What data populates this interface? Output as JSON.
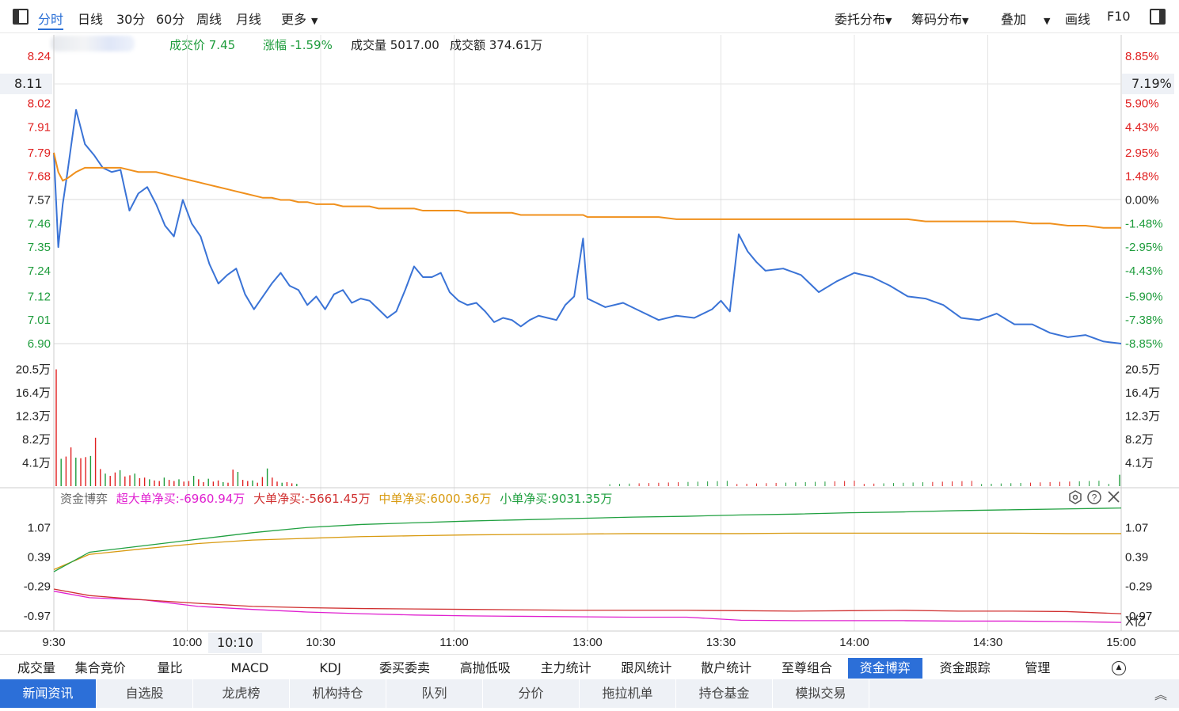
{
  "toolbar": {
    "left_items": [
      "分时",
      "日线",
      "30分",
      "60分",
      "周线",
      "月线",
      "更多"
    ],
    "right_items": [
      "委托分布",
      "筹码分布",
      "叠加",
      "画线",
      "F10"
    ]
  },
  "quote": {
    "price_label": "成交价 7.45",
    "change_label": "涨幅 -1.59%",
    "volume_label": "成交量 5017.00",
    "amount_label": "成交额 374.61万"
  },
  "price_axis": {
    "left": [
      "8.24",
      "8.11",
      "8.02",
      "7.91",
      "7.79",
      "7.68",
      "7.57",
      "7.46",
      "7.35",
      "7.24",
      "7.12",
      "7.01",
      "6.90"
    ],
    "right": [
      "8.85%",
      "7.19%",
      "5.90%",
      "4.43%",
      "2.95%",
      "1.48%",
      "0.00%",
      "-1.48%",
      "-2.95%",
      "-4.43%",
      "-5.90%",
      "-7.38%",
      "-8.85%"
    ],
    "cursor_price": "8.11",
    "cursor_pct": "7.19%"
  },
  "volume_axis": {
    "labels": [
      "20.5万",
      "16.4万",
      "12.3万",
      "8.2万",
      "4.1万"
    ]
  },
  "fund_panel": {
    "title": "资金博弈",
    "super_label": "超大单净买:-6960.94万",
    "large_label": "大单净买:-5661.45万",
    "medium_label": "中单净买:6000.36万",
    "small_label": "小单净买:9031.35万",
    "axis": [
      "1.07",
      "0.39",
      "-0.29",
      "-0.97"
    ],
    "unit": "X亿",
    "icons": [
      "settings-icon",
      "help-icon",
      "close-icon"
    ]
  },
  "time_axis": {
    "labels": [
      "9:30",
      "10:00",
      "10:30",
      "11:00",
      "13:00",
      "13:30",
      "14:00",
      "14:30",
      "15:00"
    ],
    "cursor_time": "10:10"
  },
  "tabs_primary": [
    "成交量",
    "集合竞价",
    "量比",
    "MACD",
    "KDJ",
    "委买委卖",
    "高抛低吸",
    "主力统计",
    "跟风统计",
    "散户统计",
    "至尊组合",
    "资金博弈",
    "资金跟踪",
    "管理"
  ],
  "tabs_primary_active": "资金博弈",
  "tabs_secondary": [
    "新闻资讯",
    "自选股",
    "龙虎榜",
    "机构持仓",
    "队列",
    "分价",
    "拖拉机单",
    "持仓基金",
    "模拟交易"
  ],
  "tabs_secondary_active": "新闻资讯",
  "colors": {
    "price_line": "#3a73d6",
    "avg_line": "#f0901c",
    "up": "#e02020",
    "down": "#1e9c3c",
    "super": "#e020d0",
    "large": "#d03030",
    "medium": "#d89a10",
    "small": "#20a040",
    "accent": "#2c6fd8"
  },
  "chart_data": {
    "type": "line",
    "price_series": {
      "times": [
        "09:30",
        "09:31",
        "09:32",
        "09:33",
        "09:35",
        "09:37",
        "09:39",
        "09:41",
        "09:43",
        "09:45",
        "09:47",
        "09:49",
        "09:51",
        "09:53",
        "09:55",
        "09:57",
        "09:59",
        "10:01",
        "10:03",
        "10:05",
        "10:07",
        "10:09",
        "10:11",
        "10:13",
        "10:15",
        "10:17",
        "10:19",
        "10:21",
        "10:23",
        "10:25",
        "10:27",
        "10:29",
        "10:31",
        "10:33",
        "10:35",
        "10:37",
        "10:39",
        "10:41",
        "10:43",
        "10:45",
        "10:47",
        "10:49",
        "10:51",
        "10:53",
        "10:55",
        "10:57",
        "10:59",
        "11:01",
        "11:03",
        "11:05",
        "11:07",
        "11:09",
        "11:11",
        "11:13",
        "11:15",
        "11:17",
        "11:19",
        "11:21",
        "11:23",
        "11:25",
        "11:27",
        "11:29",
        "13:00",
        "13:04",
        "13:08",
        "13:12",
        "13:16",
        "13:20",
        "13:24",
        "13:28",
        "13:30",
        "13:32",
        "13:34",
        "13:36",
        "13:38",
        "13:40",
        "13:44",
        "13:48",
        "13:52",
        "13:56",
        "14:00",
        "14:04",
        "14:08",
        "14:12",
        "14:16",
        "14:20",
        "14:24",
        "14:28",
        "14:32",
        "14:36",
        "14:40",
        "14:44",
        "14:48",
        "14:52",
        "14:56",
        "15:00"
      ],
      "values": [
        7.79,
        7.35,
        7.55,
        7.69,
        7.99,
        7.83,
        7.78,
        7.72,
        7.7,
        7.71,
        7.52,
        7.6,
        7.63,
        7.55,
        7.45,
        7.4,
        7.57,
        7.46,
        7.4,
        7.27,
        7.18,
        7.22,
        7.25,
        7.13,
        7.06,
        7.12,
        7.18,
        7.23,
        7.17,
        7.15,
        7.08,
        7.12,
        7.06,
        7.13,
        7.15,
        7.09,
        7.11,
        7.1,
        7.06,
        7.02,
        7.05,
        7.15,
        7.26,
        7.21,
        7.21,
        7.23,
        7.14,
        7.1,
        7.08,
        7.09,
        7.05,
        7.0,
        7.02,
        7.01,
        6.98,
        7.01,
        7.03,
        7.02,
        7.01,
        7.08,
        7.12,
        7.39,
        7.11,
        7.07,
        7.09,
        7.05,
        7.01,
        7.03,
        7.02,
        7.06,
        7.1,
        7.05,
        7.41,
        7.33,
        7.28,
        7.24,
        7.25,
        7.22,
        7.14,
        7.19,
        7.23,
        7.21,
        7.17,
        7.12,
        7.11,
        7.08,
        7.02,
        7.01,
        7.04,
        6.99,
        6.99,
        6.95,
        6.93,
        6.94,
        6.91,
        6.9
      ],
      "avg_values": [
        7.79,
        7.7,
        7.66,
        7.67,
        7.7,
        7.72,
        7.72,
        7.72,
        7.72,
        7.72,
        7.71,
        7.7,
        7.7,
        7.7,
        7.69,
        7.68,
        7.67,
        7.66,
        7.65,
        7.64,
        7.63,
        7.62,
        7.61,
        7.6,
        7.59,
        7.58,
        7.58,
        7.57,
        7.57,
        7.56,
        7.56,
        7.55,
        7.55,
        7.55,
        7.54,
        7.54,
        7.54,
        7.54,
        7.53,
        7.53,
        7.53,
        7.53,
        7.53,
        7.52,
        7.52,
        7.52,
        7.52,
        7.52,
        7.51,
        7.51,
        7.51,
        7.51,
        7.51,
        7.51,
        7.5,
        7.5,
        7.5,
        7.5,
        7.5,
        7.5,
        7.5,
        7.5,
        7.49,
        7.49,
        7.49,
        7.49,
        7.49,
        7.48,
        7.48,
        7.48,
        7.48,
        7.48,
        7.48,
        7.48,
        7.48,
        7.48,
        7.48,
        7.48,
        7.48,
        7.48,
        7.48,
        7.48,
        7.48,
        7.48,
        7.47,
        7.47,
        7.47,
        7.47,
        7.47,
        7.47,
        7.46,
        7.46,
        7.45,
        7.45,
        7.44,
        7.44
      ]
    },
    "price_range": [
      6.9,
      8.24
    ],
    "volume_bars_wan": [
      20.5,
      4.8,
      5.2,
      6.8,
      5.0,
      4.9,
      5.1,
      5.3,
      8.5,
      3.0,
      2.2,
      1.8,
      2.4,
      2.8,
      1.7,
      1.9,
      2.2,
      1.4,
      1.5,
      1.2,
      1.0,
      0.9,
      1.5,
      1.1,
      0.9,
      1.2,
      0.8,
      0.9,
      1.8,
      1.2,
      0.7,
      1.3,
      0.8,
      1.0,
      0.7,
      0.6,
      2.9,
      2.5,
      1.1,
      0.9,
      1.0,
      0.6,
      1.6,
      3.1,
      1.5,
      0.8,
      0.6,
      0.7,
      0.5,
      0.4
    ],
    "volume_range": [
      0,
      24.6
    ],
    "fund_series": {
      "super": [
        -0.4,
        -0.55,
        -0.6,
        -0.75,
        -0.82,
        -0.88,
        -0.92,
        -0.95,
        -0.97,
        -0.98,
        -0.99,
        -1.0,
        -1.0,
        -1.07,
        -1.08,
        -1.08,
        -1.08,
        -1.09,
        -1.09,
        -1.1,
        -1.12
      ],
      "large": [
        -0.35,
        -0.5,
        -0.6,
        -0.68,
        -0.75,
        -0.78,
        -0.8,
        -0.81,
        -0.82,
        -0.83,
        -0.84,
        -0.84,
        -0.84,
        -0.85,
        -0.86,
        -0.85,
        -0.84,
        -0.86,
        -0.86,
        -0.87,
        -0.92
      ],
      "medium": [
        0.1,
        0.45,
        0.58,
        0.7,
        0.78,
        0.82,
        0.86,
        0.88,
        0.9,
        0.91,
        0.92,
        0.93,
        0.93,
        0.93,
        0.94,
        0.94,
        0.94,
        0.94,
        0.94,
        0.93,
        0.93
      ],
      "small": [
        0.05,
        0.5,
        0.65,
        0.8,
        0.95,
        1.07,
        1.14,
        1.18,
        1.22,
        1.25,
        1.28,
        1.31,
        1.33,
        1.36,
        1.38,
        1.41,
        1.43,
        1.46,
        1.48,
        1.5,
        1.52
      ]
    },
    "fund_range": [
      -1.1,
      1.55
    ]
  }
}
